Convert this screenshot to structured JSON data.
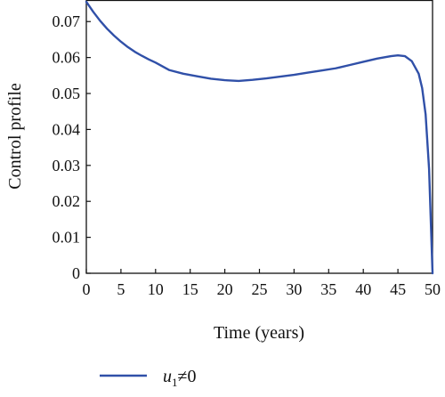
{
  "chart_data": {
    "type": "line",
    "xlabel": "Time (years)",
    "ylabel": "Control profile",
    "xlim": [
      0,
      50
    ],
    "ylim": [
      0,
      0.076
    ],
    "x_ticks": [
      0,
      5,
      10,
      15,
      20,
      25,
      30,
      35,
      40,
      45,
      50
    ],
    "x_tick_labels": [
      "0",
      "5",
      "10",
      "15",
      "20",
      "25",
      "30",
      "35",
      "40",
      "45",
      "50"
    ],
    "y_ticks": [
      0,
      0.01,
      0.02,
      0.03,
      0.04,
      0.05,
      0.06,
      0.07
    ],
    "y_tick_labels": [
      "0",
      "0.01",
      "0.02",
      "0.03",
      "0.04",
      "0.05",
      "0.06",
      "0.07"
    ],
    "grid": false,
    "legend_position": "bottom-left",
    "series": [
      {
        "name": "u1≠0",
        "name_base": "u",
        "name_sub": "1",
        "name_rest": "≠0",
        "color": "#3050a8",
        "x": [
          0,
          1,
          2,
          3,
          4,
          5,
          6,
          7,
          8,
          9,
          10,
          12,
          14,
          16,
          18,
          20,
          22,
          24,
          26,
          28,
          30,
          32,
          34,
          36,
          38,
          40,
          42,
          44,
          45,
          46,
          47,
          48,
          48.5,
          49,
          49.5,
          50
        ],
        "y": [
          0.0755,
          0.0727,
          0.0702,
          0.068,
          0.0661,
          0.0644,
          0.0629,
          0.0616,
          0.0605,
          0.0595,
          0.0586,
          0.0565,
          0.0555,
          0.0548,
          0.0541,
          0.0537,
          0.0535,
          0.0538,
          0.0542,
          0.0547,
          0.0552,
          0.0558,
          0.0564,
          0.057,
          0.0579,
          0.0588,
          0.0597,
          0.0604,
          0.0606,
          0.0604,
          0.059,
          0.0555,
          0.0515,
          0.0442,
          0.029,
          0.0
        ]
      }
    ]
  }
}
